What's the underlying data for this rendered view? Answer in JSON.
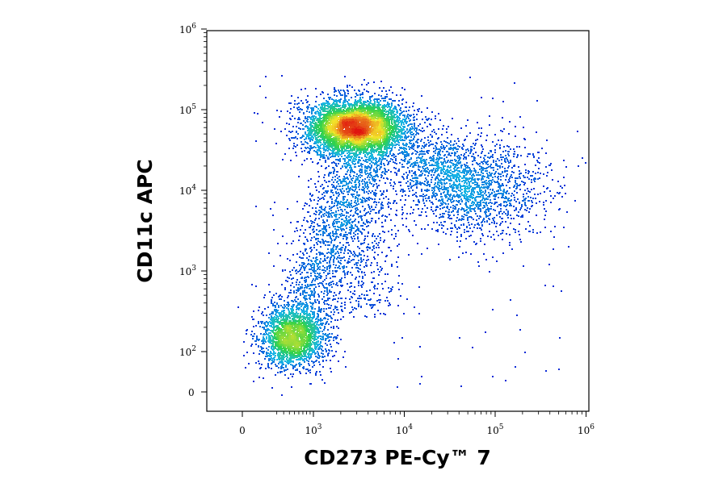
{
  "chart_data": {
    "type": "scatter",
    "subtype": "flow-cytometry-density-dot-plot",
    "xlabel": "CD273 PE-Cy™ 7",
    "ylabel": "CD11c APC",
    "x_scale": "biexponential",
    "y_scale": "biexponential",
    "xlim": [
      -200,
      1000000
    ],
    "ylim": [
      -5,
      1000000
    ],
    "x_ticks": [
      {
        "value": 0,
        "base": "0",
        "exp": ""
      },
      {
        "value": 1000,
        "base": "10",
        "exp": "3"
      },
      {
        "value": 10000,
        "base": "10",
        "exp": "4"
      },
      {
        "value": 100000,
        "base": "10",
        "exp": "5"
      },
      {
        "value": 1000000,
        "base": "10",
        "exp": "6"
      }
    ],
    "y_ticks": [
      {
        "value": 0,
        "base": "0",
        "exp": ""
      },
      {
        "value": 100,
        "base": "10",
        "exp": "2"
      },
      {
        "value": 1000,
        "base": "10",
        "exp": "3"
      },
      {
        "value": 10000,
        "base": "10",
        "exp": "4"
      },
      {
        "value": 100000,
        "base": "10",
        "exp": "5"
      },
      {
        "value": 1000000,
        "base": "10",
        "exp": "6"
      }
    ],
    "color_scale": "density (blue low → cyan → green → yellow → red high)",
    "populations": [
      {
        "name": "",
        "x_center": 2800,
        "y_center": 68000,
        "density": "highest"
      },
      {
        "name": "",
        "x_center": 55000,
        "y_center": 11000,
        "density": "low"
      },
      {
        "name": "",
        "x_center": 450,
        "y_center": 150,
        "density": "medium"
      }
    ],
    "grid": false,
    "legend": false
  },
  "colors": {
    "background": "#ffffff",
    "axis": "#000000",
    "density_low": "#0a1fd6",
    "density_mid_low": "#19b7e6",
    "density_mid": "#2fd24a",
    "density_mid_high": "#f3e52a",
    "density_high": "#e0140f"
  }
}
